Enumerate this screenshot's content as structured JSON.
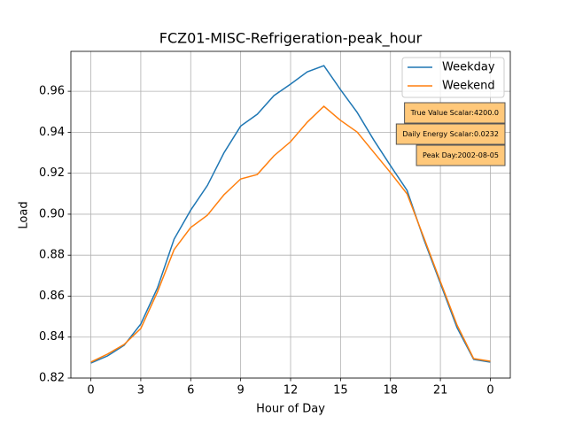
{
  "chart_data": {
    "type": "line",
    "title": "FCZ01-MISC-Refrigeration-peak_hour",
    "xlabel": "Hour of Day",
    "ylabel": "Load",
    "x": [
      0,
      1,
      2,
      3,
      4,
      5,
      6,
      7,
      8,
      9,
      10,
      11,
      12,
      13,
      14,
      15,
      16,
      17,
      18,
      19,
      20,
      21,
      22,
      23,
      24
    ],
    "series": [
      {
        "name": "Weekday",
        "color": "#1f77b4",
        "values": [
          0.8273,
          0.8308,
          0.836,
          0.8464,
          0.864,
          0.8878,
          0.902,
          0.914,
          0.93,
          0.943,
          0.9488,
          0.9579,
          0.9635,
          0.9695,
          0.9725,
          0.9608,
          0.9497,
          0.9362,
          0.9237,
          0.9116,
          0.8878,
          0.8662,
          0.8446,
          0.8291,
          0.8278
        ]
      },
      {
        "name": "Weekend",
        "color": "#ff7f0e",
        "values": [
          0.8278,
          0.8317,
          0.8364,
          0.8442,
          0.862,
          0.8827,
          0.8935,
          0.8995,
          0.9095,
          0.9172,
          0.9194,
          0.9285,
          0.9354,
          0.9449,
          0.9527,
          0.9458,
          0.9401,
          0.9302,
          0.9203,
          0.9099,
          0.8887,
          0.8671,
          0.8459,
          0.8295,
          0.8282
        ]
      }
    ],
    "xlim": [
      -1.2,
      25.2
    ],
    "xticks": [
      0,
      3,
      6,
      9,
      12,
      15,
      18,
      21,
      {
        "value": 24,
        "label": "0"
      }
    ],
    "ylim": [
      0.82,
      0.9795
    ],
    "yticks": [
      0.82,
      0.84,
      0.86,
      0.88,
      {
        "value": 0.9,
        "label": "0.90"
      },
      0.92,
      0.94,
      0.96
    ],
    "grid": true,
    "legend": "upper right",
    "annotations": [
      "True Value Scalar:4200.0",
      "Daily Energy Scalar:0.0232",
      "Peak Day:2002-08-05"
    ],
    "annotation_color": "#ffc87a"
  }
}
